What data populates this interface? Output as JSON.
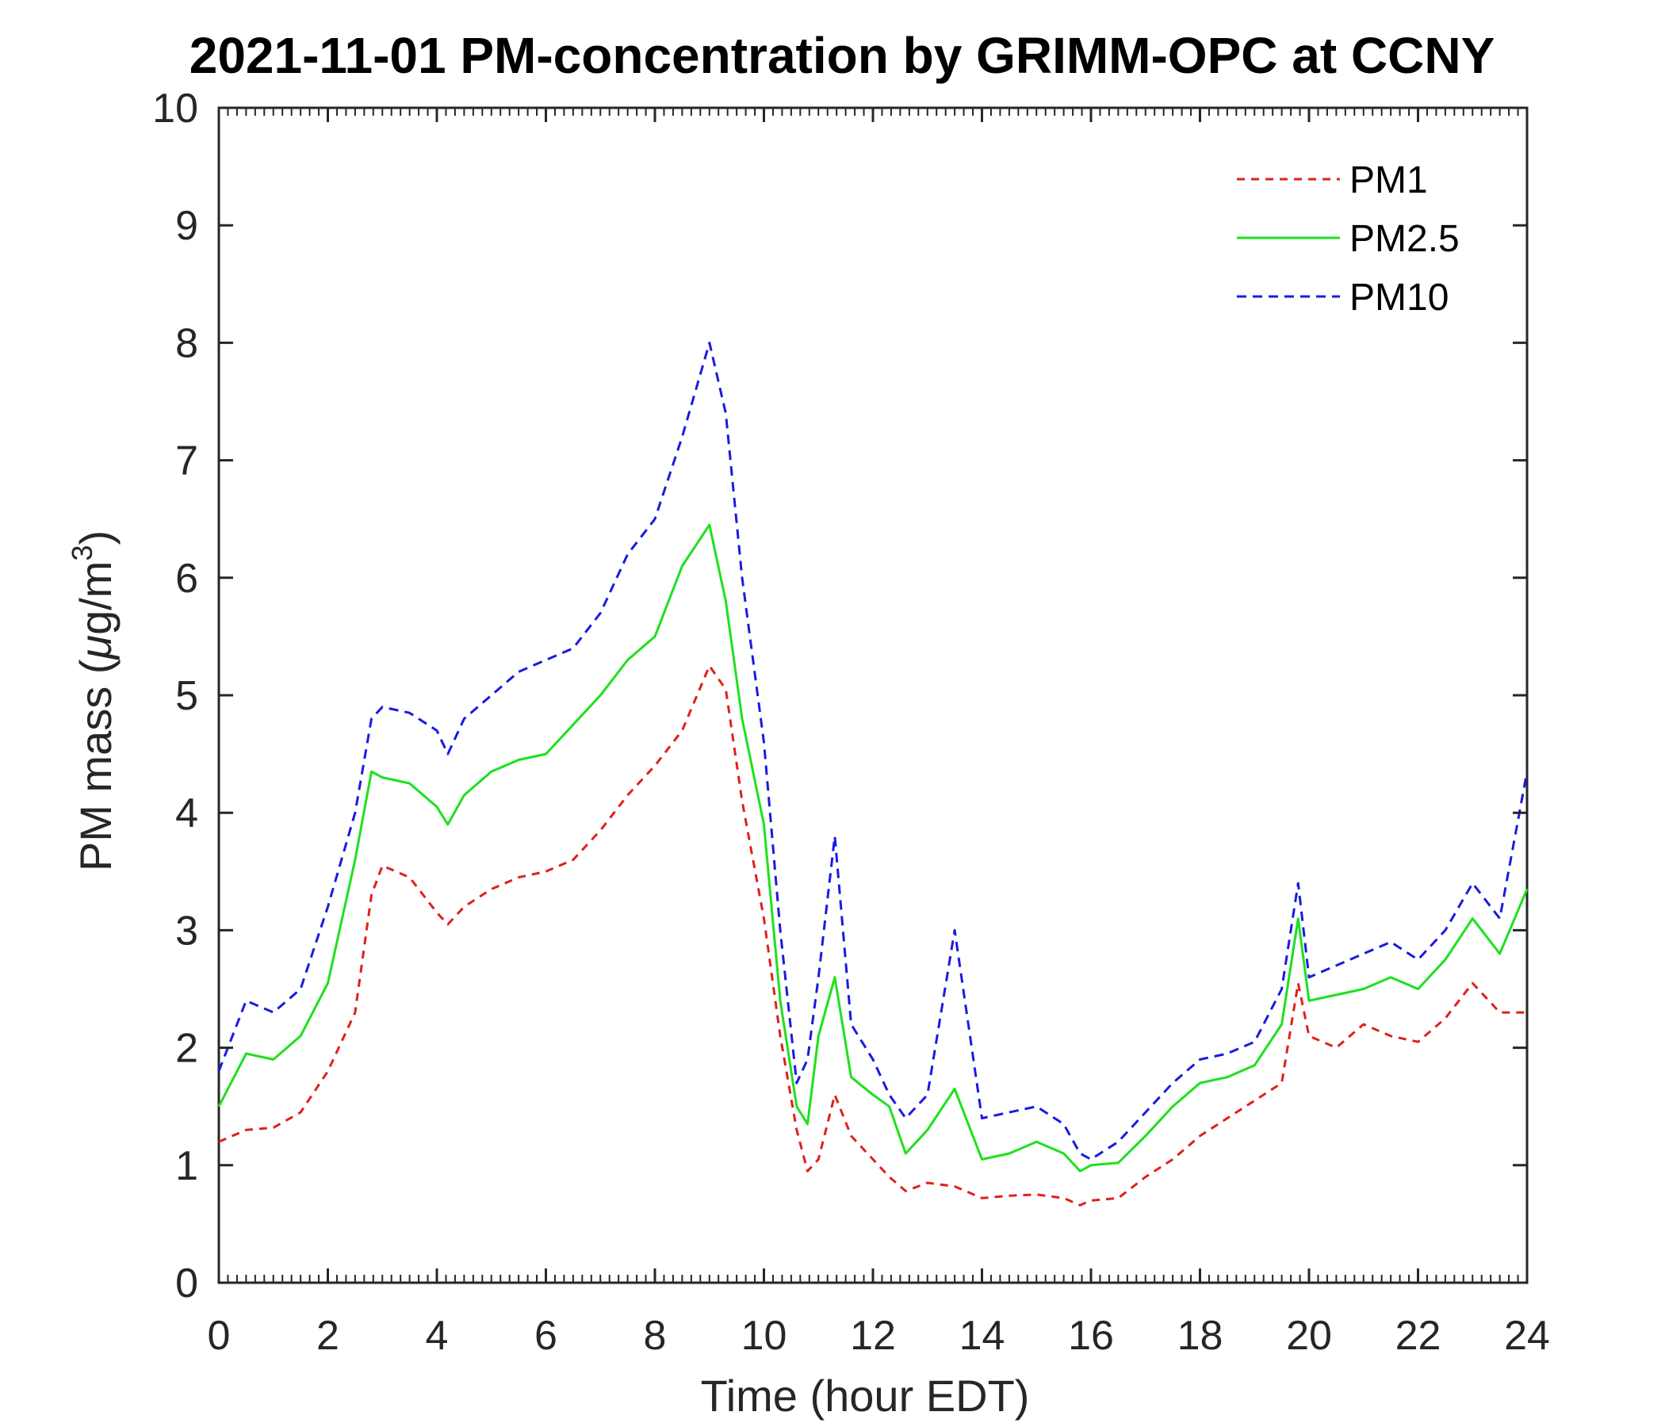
{
  "chart_data": {
    "type": "line",
    "title": "2021-11-01 PM-concentration by GRIMM-OPC at CCNY",
    "xlabel": "Time (hour EDT)",
    "ylabel_prefix": "PM mass (",
    "ylabel_mu": "μ",
    "ylabel_unit": "g/m",
    "ylabel_exp": "3",
    "ylabel_suffix": ")",
    "xlim": [
      0,
      24
    ],
    "ylim": [
      0,
      10
    ],
    "xticks": [
      "0",
      "2",
      "4",
      "6",
      "8",
      "10",
      "12",
      "14",
      "16",
      "18",
      "20",
      "22",
      "24"
    ],
    "yticks": [
      "0",
      "1",
      "2",
      "3",
      "4",
      "5",
      "6",
      "7",
      "8",
      "9",
      "10"
    ],
    "legend_position": "top-right",
    "x": [
      0,
      0.5,
      1,
      1.5,
      2,
      2.5,
      2.8,
      3,
      3.5,
      4,
      4.2,
      4.5,
      5,
      5.5,
      6,
      6.5,
      7,
      7.5,
      8,
      8.5,
      9,
      9.3,
      9.6,
      10,
      10.3,
      10.6,
      10.8,
      11,
      11.3,
      11.6,
      12,
      12.3,
      12.6,
      13,
      13.5,
      14,
      14.5,
      15,
      15.5,
      15.8,
      16,
      16.5,
      17,
      17.5,
      18,
      18.5,
      19,
      19.5,
      19.8,
      20,
      20.5,
      21,
      21.5,
      22,
      22.5,
      23,
      23.5,
      24
    ],
    "series": [
      {
        "name": "PM1",
        "color": "#e0201b",
        "dash": "10,8",
        "values": [
          1.2,
          1.3,
          1.32,
          1.45,
          1.8,
          2.3,
          3.3,
          3.55,
          3.45,
          3.15,
          3.05,
          3.2,
          3.35,
          3.45,
          3.5,
          3.6,
          3.85,
          4.15,
          4.4,
          4.7,
          5.25,
          5.05,
          4.1,
          3.1,
          2.1,
          1.3,
          0.95,
          1.05,
          1.6,
          1.25,
          1.05,
          0.9,
          0.78,
          0.85,
          0.82,
          0.72,
          0.74,
          0.75,
          0.72,
          0.66,
          0.7,
          0.72,
          0.9,
          1.05,
          1.25,
          1.4,
          1.55,
          1.7,
          2.55,
          2.1,
          2.0,
          2.2,
          2.1,
          2.05,
          2.25,
          2.55,
          2.3,
          2.3
        ]
      },
      {
        "name": "PM2.5",
        "color": "#1ee01e",
        "dash": "",
        "values": [
          1.5,
          1.95,
          1.9,
          2.1,
          2.55,
          3.6,
          4.35,
          4.3,
          4.25,
          4.05,
          3.9,
          4.15,
          4.35,
          4.45,
          4.5,
          4.75,
          5.0,
          5.3,
          5.5,
          6.1,
          6.45,
          5.8,
          4.8,
          3.9,
          2.4,
          1.5,
          1.35,
          2.1,
          2.6,
          1.75,
          1.6,
          1.5,
          1.1,
          1.3,
          1.65,
          1.05,
          1.1,
          1.2,
          1.1,
          0.95,
          1.0,
          1.02,
          1.25,
          1.5,
          1.7,
          1.75,
          1.85,
          2.2,
          3.1,
          2.4,
          2.45,
          2.5,
          2.6,
          2.5,
          2.75,
          3.1,
          2.8,
          3.35
        ]
      },
      {
        "name": "PM10",
        "color": "#1a1ae0",
        "dash": "12,8",
        "values": [
          1.8,
          2.4,
          2.3,
          2.5,
          3.2,
          4.0,
          4.8,
          4.9,
          4.85,
          4.7,
          4.5,
          4.8,
          5.0,
          5.2,
          5.3,
          5.4,
          5.7,
          6.2,
          6.5,
          7.2,
          8.0,
          7.4,
          6.0,
          4.6,
          3.0,
          1.7,
          1.9,
          2.6,
          3.8,
          2.2,
          1.9,
          1.6,
          1.4,
          1.6,
          3.0,
          1.4,
          1.45,
          1.5,
          1.35,
          1.1,
          1.05,
          1.2,
          1.45,
          1.7,
          1.9,
          1.95,
          2.05,
          2.5,
          3.4,
          2.6,
          2.7,
          2.8,
          2.9,
          2.75,
          3.0,
          3.4,
          3.1,
          4.35
        ]
      }
    ]
  }
}
